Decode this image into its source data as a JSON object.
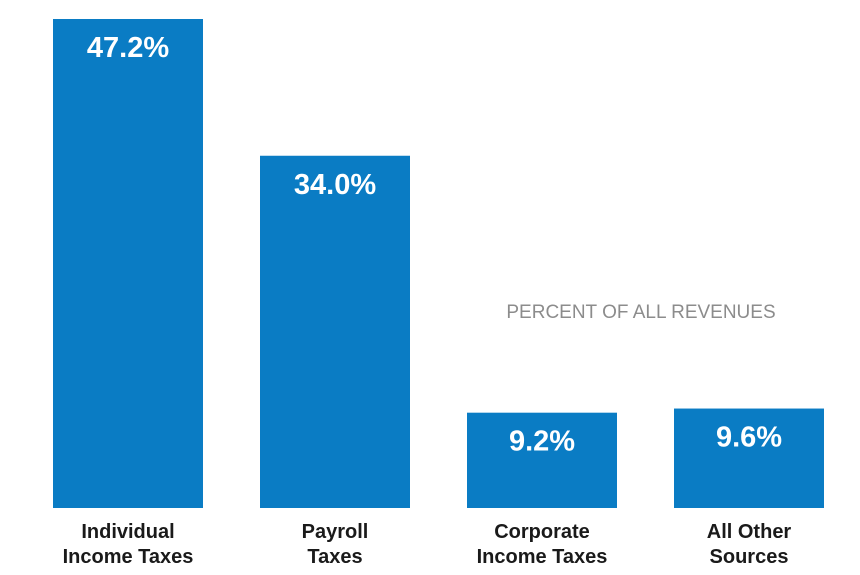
{
  "chart_data": {
    "type": "bar",
    "categories": [
      [
        "Individual",
        "Income Taxes"
      ],
      [
        "Payroll",
        "Taxes"
      ],
      [
        "Corporate",
        "Income Taxes"
      ],
      [
        "All Other",
        "Sources"
      ]
    ],
    "values": [
      47.2,
      34.0,
      9.2,
      9.6
    ],
    "value_labels": [
      "47.2%",
      "34.0%",
      "9.2%",
      "9.6%"
    ],
    "annotation": "PERCENT OF ALL REVENUES",
    "ylim": [
      0,
      47.2
    ],
    "grid": false,
    "bar_color": "#0a7cc4"
  }
}
